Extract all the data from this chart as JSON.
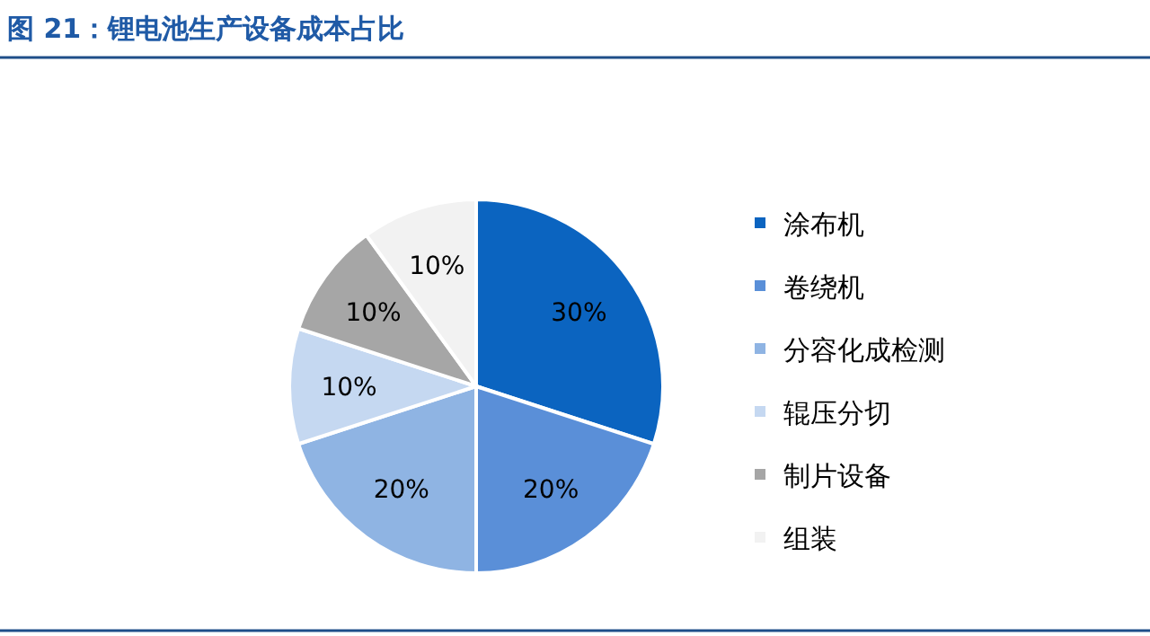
{
  "chart_data": {
    "type": "pie",
    "title": "图 21：锂电池生产设备成本占比",
    "categories": [
      "涂布机",
      "卷绕机",
      "分容化成检测",
      "辊压分切",
      "制片设备",
      "组装"
    ],
    "values": [
      30,
      20,
      20,
      10,
      10,
      10
    ],
    "value_labels": [
      "30%",
      "20%",
      "20%",
      "10%",
      "10%",
      "10%"
    ],
    "colors": [
      "#0b64c0",
      "#5a8fd8",
      "#8fb4e3",
      "#c5d8f1",
      "#a6a6a6",
      "#f2f2f2"
    ],
    "legend": "right"
  }
}
